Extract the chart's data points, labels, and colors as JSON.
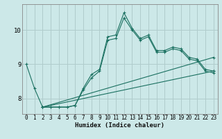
{
  "title": "",
  "xlabel": "Humidex (Indice chaleur)",
  "ylabel": "",
  "background_color": "#cce8e8",
  "grid_color": "#b0cccc",
  "line_color": "#1a7060",
  "xlim": [
    -0.5,
    23.5
  ],
  "ylim": [
    7.55,
    10.75
  ],
  "yticks": [
    8,
    9,
    10
  ],
  "xticks": [
    0,
    1,
    2,
    3,
    4,
    5,
    6,
    7,
    8,
    9,
    10,
    11,
    12,
    13,
    14,
    15,
    16,
    17,
    18,
    19,
    20,
    21,
    22,
    23
  ],
  "lines": [
    {
      "x": [
        0,
        1,
        2,
        3,
        4,
        5,
        6,
        7,
        8,
        9,
        10,
        11,
        12,
        13,
        14,
        15,
        16,
        17,
        18,
        19,
        20,
        21,
        22,
        23
      ],
      "y": [
        9.0,
        8.3,
        7.75,
        7.75,
        7.75,
        7.75,
        7.8,
        8.3,
        8.7,
        8.85,
        9.8,
        9.85,
        10.5,
        10.05,
        9.75,
        9.85,
        9.4,
        9.4,
        9.5,
        9.45,
        9.2,
        9.15,
        8.85,
        8.8
      ]
    },
    {
      "x": [
        2,
        3,
        4,
        5,
        6,
        7,
        8,
        9,
        10,
        11,
        12,
        13,
        14,
        15,
        16,
        17,
        18,
        19,
        20,
        21,
        22,
        23
      ],
      "y": [
        7.75,
        7.75,
        7.75,
        7.75,
        7.8,
        8.25,
        8.6,
        8.8,
        9.7,
        9.75,
        10.35,
        10.0,
        9.7,
        9.8,
        9.35,
        9.35,
        9.45,
        9.4,
        9.15,
        9.1,
        8.8,
        8.75
      ]
    },
    {
      "x": [
        2,
        23
      ],
      "y": [
        7.75,
        9.2
      ]
    },
    {
      "x": [
        2,
        23
      ],
      "y": [
        7.75,
        8.8
      ]
    }
  ]
}
